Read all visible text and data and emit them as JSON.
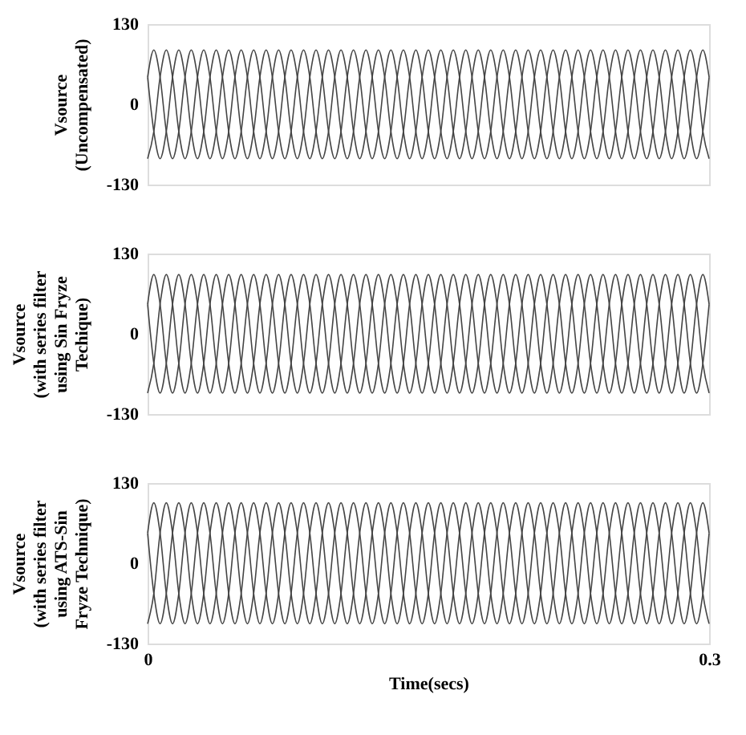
{
  "chart_data": [
    {
      "type": "line",
      "ylabel": "Vsource\n(Uncompensated)",
      "xlim": [
        0,
        0.3
      ],
      "ylim": [
        -130,
        130
      ],
      "yticks": [
        -130,
        0,
        130
      ],
      "tick_labels": "y",
      "grid": false,
      "legend": false,
      "marker": "none",
      "line_style": "solid",
      "x": [
        0,
        0.00333,
        0.00667,
        0.01,
        0.01333,
        0.01667,
        0.02,
        0.02333,
        0.02667,
        0.03,
        0.03333,
        0.03667,
        0.04,
        0.04333,
        0.04667,
        0.05,
        0.05333,
        0.05667,
        0.06,
        0.06333,
        0.06667,
        0.07,
        0.07333,
        0.07667,
        0.08,
        0.08333,
        0.08667,
        0.09,
        0.09333,
        0.09667,
        0.1,
        0.10333,
        0.10667,
        0.11,
        0.11333,
        0.11667,
        0.12,
        0.12333,
        0.12667,
        0.13,
        0.13333,
        0.13667,
        0.14,
        0.14333,
        0.14667,
        0.15,
        0.15333,
        0.15667,
        0.16,
        0.16333,
        0.16667,
        0.17,
        0.17333,
        0.17667,
        0.18,
        0.18333,
        0.18667,
        0.19,
        0.19333,
        0.19667,
        0.2,
        0.20333,
        0.20667,
        0.21,
        0.21333,
        0.21667,
        0.22,
        0.22333,
        0.22667,
        0.23,
        0.23333,
        0.23667,
        0.24,
        0.24333,
        0.24667,
        0.25,
        0.25333,
        0.25667,
        0.26,
        0.26333,
        0.26667,
        0.27,
        0.27333,
        0.27667,
        0.28,
        0.28333,
        0.28667,
        0.29,
        0.29333,
        0.29667,
        0.3
      ],
      "series": [
        {
          "color": "#444444",
          "values": [
            44,
            88,
            44,
            -44,
            -88,
            -44,
            44,
            88,
            44,
            -44,
            -88,
            -44,
            44,
            88,
            44,
            -44,
            -88,
            -44,
            44,
            88,
            44,
            -44,
            -88,
            -44,
            44,
            88,
            44,
            -44,
            -88,
            -44,
            44,
            88,
            44,
            -44,
            -88,
            -44,
            44,
            88,
            44,
            -44,
            -88,
            -44,
            44,
            88,
            44,
            -44,
            -88,
            -44,
            44,
            88,
            44,
            -44,
            -88,
            -44,
            44,
            88,
            44,
            -44,
            -88,
            -44,
            44,
            88,
            44,
            -44,
            -88,
            -44,
            44,
            88,
            44,
            -44,
            -88,
            -44,
            44,
            88,
            44,
            -44,
            -88,
            -44,
            44,
            88,
            44,
            -44,
            -88,
            -44,
            44,
            88,
            44,
            -44,
            -88,
            -44,
            44
          ]
        },
        {
          "color": "#444444",
          "values": [
            -88,
            -44,
            44,
            88,
            44,
            -44,
            -88,
            -44,
            44,
            88,
            44,
            -44,
            -88,
            -44,
            44,
            88,
            44,
            -44,
            -88,
            -44,
            44,
            88,
            44,
            -44,
            -88,
            -44,
            44,
            88,
            44,
            -44,
            -88,
            -44,
            44,
            88,
            44,
            -44,
            -88,
            -44,
            44,
            88,
            44,
            -44,
            -88,
            -44,
            44,
            88,
            44,
            -44,
            -88,
            -44,
            44,
            88,
            44,
            -44,
            -88,
            -44,
            44,
            88,
            44,
            -44,
            -88,
            -44,
            44,
            88,
            44,
            -44,
            -88,
            -44,
            44,
            88,
            44,
            -44,
            -88,
            -44,
            44,
            88,
            44,
            -44,
            -88,
            -44,
            44,
            88,
            44,
            -44,
            -88,
            -44,
            44,
            88,
            44,
            -44,
            -88
          ]
        },
        {
          "color": "#444444",
          "values": [
            44,
            -44,
            -88,
            -44,
            44,
            88,
            44,
            -44,
            -88,
            -44,
            44,
            88,
            44,
            -44,
            -88,
            -44,
            44,
            88,
            44,
            -44,
            -88,
            -44,
            44,
            88,
            44,
            -44,
            -88,
            -44,
            44,
            88,
            44,
            -44,
            -88,
            -44,
            44,
            88,
            44,
            -44,
            -88,
            -44,
            44,
            88,
            44,
            -44,
            -88,
            -44,
            44,
            88,
            44,
            -44,
            -88,
            -44,
            44,
            88,
            44,
            -44,
            -88,
            -44,
            44,
            88,
            44,
            -44,
            -88,
            -44,
            44,
            88,
            44,
            -44,
            -88,
            -44,
            44,
            88,
            44,
            -44,
            -88,
            -44,
            44,
            88,
            44,
            -44,
            -88,
            -44,
            44,
            88,
            44,
            -44,
            -88,
            -44,
            44,
            88,
            44
          ]
        }
      ]
    },
    {
      "type": "line",
      "ylabel": "Vsource\n(with series filter\nusing Sin Fryze\nTechique)",
      "xlim": [
        0,
        0.3
      ],
      "ylim": [
        -130,
        130
      ],
      "yticks": [
        -130,
        0,
        130
      ],
      "tick_labels": "y",
      "grid": false,
      "legend": false,
      "marker": "none",
      "line_style": "solid",
      "x": [
        0,
        0.00333,
        0.00667,
        0.01,
        0.01333,
        0.01667,
        0.02,
        0.02333,
        0.02667,
        0.03,
        0.03333,
        0.03667,
        0.04,
        0.04333,
        0.04667,
        0.05,
        0.05333,
        0.05667,
        0.06,
        0.06333,
        0.06667,
        0.07,
        0.07333,
        0.07667,
        0.08,
        0.08333,
        0.08667,
        0.09,
        0.09333,
        0.09667,
        0.1,
        0.10333,
        0.10667,
        0.11,
        0.11333,
        0.11667,
        0.12,
        0.12333,
        0.12667,
        0.13,
        0.13333,
        0.13667,
        0.14,
        0.14333,
        0.14667,
        0.15,
        0.15333,
        0.15667,
        0.16,
        0.16333,
        0.16667,
        0.17,
        0.17333,
        0.17667,
        0.18,
        0.18333,
        0.18667,
        0.19,
        0.19333,
        0.19667,
        0.2,
        0.20333,
        0.20667,
        0.21,
        0.21333,
        0.21667,
        0.22,
        0.22333,
        0.22667,
        0.23,
        0.23333,
        0.23667,
        0.24,
        0.24333,
        0.24667,
        0.25,
        0.25333,
        0.25667,
        0.26,
        0.26333,
        0.26667,
        0.27,
        0.27333,
        0.27667,
        0.28,
        0.28333,
        0.28667,
        0.29,
        0.29333,
        0.29667,
        0.3
      ],
      "series": [
        {
          "color": "#444444",
          "values": [
            48,
            96,
            48,
            -48,
            -96,
            -48,
            48,
            96,
            48,
            -48,
            -96,
            -48,
            48,
            96,
            48,
            -48,
            -96,
            -48,
            48,
            96,
            48,
            -48,
            -96,
            -48,
            48,
            96,
            48,
            -48,
            -96,
            -48,
            48,
            96,
            48,
            -48,
            -96,
            -48,
            48,
            96,
            48,
            -48,
            -96,
            -48,
            48,
            96,
            48,
            -48,
            -96,
            -48,
            48,
            96,
            48,
            -48,
            -96,
            -48,
            48,
            96,
            48,
            -48,
            -96,
            -48,
            48,
            96,
            48,
            -48,
            -96,
            -48,
            48,
            96,
            48,
            -48,
            -96,
            -48,
            48,
            96,
            48,
            -48,
            -96,
            -48,
            48,
            96,
            48,
            -48,
            -96,
            -48,
            48,
            96,
            48,
            -48,
            -96,
            -48,
            48
          ]
        },
        {
          "color": "#444444",
          "values": [
            -96,
            -48,
            48,
            96,
            48,
            -48,
            -96,
            -48,
            48,
            96,
            48,
            -48,
            -96,
            -48,
            48,
            96,
            48,
            -48,
            -96,
            -48,
            48,
            96,
            48,
            -48,
            -96,
            -48,
            48,
            96,
            48,
            -48,
            -96,
            -48,
            48,
            96,
            48,
            -48,
            -96,
            -48,
            48,
            96,
            48,
            -48,
            -96,
            -48,
            48,
            96,
            48,
            -48,
            -96,
            -48,
            48,
            96,
            48,
            -48,
            -96,
            -48,
            48,
            96,
            48,
            -48,
            -96,
            -48,
            48,
            96,
            48,
            -48,
            -96,
            -48,
            48,
            96,
            48,
            -48,
            -96,
            -48,
            48,
            96,
            48,
            -48,
            -96,
            -48,
            48,
            96,
            48,
            -48,
            -96,
            -48,
            48,
            96,
            48,
            -48,
            -96
          ]
        },
        {
          "color": "#444444",
          "values": [
            48,
            -48,
            -96,
            -48,
            48,
            96,
            48,
            -48,
            -96,
            -48,
            48,
            96,
            48,
            -48,
            -96,
            -48,
            48,
            96,
            48,
            -48,
            -96,
            -48,
            48,
            96,
            48,
            -48,
            -96,
            -48,
            48,
            96,
            48,
            -48,
            -96,
            -48,
            48,
            96,
            48,
            -48,
            -96,
            -48,
            48,
            96,
            48,
            -48,
            -96,
            -48,
            48,
            96,
            48,
            -48,
            -96,
            -48,
            48,
            96,
            48,
            -48,
            -96,
            -48,
            48,
            96,
            48,
            -48,
            -96,
            -48,
            48,
            96,
            48,
            -48,
            -96,
            -48,
            48,
            96,
            48,
            -48,
            -96,
            -48,
            48,
            96,
            48,
            -48,
            -96,
            -48,
            48,
            96,
            48,
            -48,
            -96,
            -48,
            48,
            96,
            48
          ]
        }
      ]
    },
    {
      "type": "line",
      "ylabel": "Vsource\n(with series filter\nusing ATS-Sin\nFryze Technique)",
      "xlabel": "Time(secs)",
      "xlim": [
        0,
        0.3
      ],
      "xticks": [
        0,
        0.3
      ],
      "ylim": [
        -130,
        130
      ],
      "yticks": [
        -130,
        0,
        130
      ],
      "grid": false,
      "legend": false,
      "marker": "none",
      "line_style": "solid",
      "x": [
        0,
        0.00333,
        0.00667,
        0.01,
        0.01333,
        0.01667,
        0.02,
        0.02333,
        0.02667,
        0.03,
        0.03333,
        0.03667,
        0.04,
        0.04333,
        0.04667,
        0.05,
        0.05333,
        0.05667,
        0.06,
        0.06333,
        0.06667,
        0.07,
        0.07333,
        0.07667,
        0.08,
        0.08333,
        0.08667,
        0.09,
        0.09333,
        0.09667,
        0.1,
        0.10333,
        0.10667,
        0.11,
        0.11333,
        0.11667,
        0.12,
        0.12333,
        0.12667,
        0.13,
        0.13333,
        0.13667,
        0.14,
        0.14333,
        0.14667,
        0.15,
        0.15333,
        0.15667,
        0.16,
        0.16333,
        0.16667,
        0.17,
        0.17333,
        0.17667,
        0.18,
        0.18333,
        0.18667,
        0.19,
        0.19333,
        0.19667,
        0.2,
        0.20333,
        0.20667,
        0.21,
        0.21333,
        0.21667,
        0.22,
        0.22333,
        0.22667,
        0.23,
        0.23333,
        0.23667,
        0.24,
        0.24333,
        0.24667,
        0.25,
        0.25333,
        0.25667,
        0.26,
        0.26333,
        0.26667,
        0.27,
        0.27333,
        0.27667,
        0.28,
        0.28333,
        0.28667,
        0.29,
        0.29333,
        0.29667,
        0.3
      ],
      "series": [
        {
          "color": "#444444",
          "values": [
            49,
            98,
            49,
            -49,
            -98,
            -49,
            49,
            98,
            49,
            -49,
            -98,
            -49,
            49,
            98,
            49,
            -49,
            -98,
            -49,
            49,
            98,
            49,
            -49,
            -98,
            -49,
            49,
            98,
            49,
            -49,
            -98,
            -49,
            49,
            98,
            49,
            -49,
            -98,
            -49,
            49,
            98,
            49,
            -49,
            -98,
            -49,
            49,
            98,
            49,
            -49,
            -98,
            -49,
            49,
            98,
            49,
            -49,
            -98,
            -49,
            49,
            98,
            49,
            -49,
            -98,
            -49,
            49,
            98,
            49,
            -49,
            -98,
            -49,
            49,
            98,
            49,
            -49,
            -98,
            -49,
            49,
            98,
            49,
            -49,
            -98,
            -49,
            49,
            98,
            49,
            -49,
            -98,
            -49,
            49,
            98,
            49,
            -49,
            -98,
            -49,
            49
          ]
        },
        {
          "color": "#444444",
          "values": [
            -98,
            -49,
            49,
            98,
            49,
            -49,
            -98,
            -49,
            49,
            98,
            49,
            -49,
            -98,
            -49,
            49,
            98,
            49,
            -49,
            -98,
            -49,
            49,
            98,
            49,
            -49,
            -98,
            -49,
            49,
            98,
            49,
            -49,
            -98,
            -49,
            49,
            98,
            49,
            -49,
            -98,
            -49,
            49,
            98,
            49,
            -49,
            -98,
            -49,
            49,
            98,
            49,
            -49,
            -98,
            -49,
            49,
            98,
            49,
            -49,
            -98,
            -49,
            49,
            98,
            49,
            -49,
            -98,
            -49,
            49,
            98,
            49,
            -49,
            -98,
            -49,
            49,
            98,
            49,
            -49,
            -98,
            -49,
            49,
            98,
            49,
            -49,
            -98,
            -49,
            49,
            98,
            49,
            -49,
            -98,
            -49,
            49,
            98,
            49,
            -49,
            -98
          ]
        },
        {
          "color": "#444444",
          "values": [
            49,
            -49,
            -98,
            -49,
            49,
            98,
            49,
            -49,
            -98,
            -49,
            49,
            98,
            49,
            -49,
            -98,
            -49,
            49,
            98,
            49,
            -49,
            -98,
            -49,
            49,
            98,
            49,
            -49,
            -98,
            -49,
            49,
            98,
            49,
            -49,
            -98,
            -49,
            49,
            98,
            49,
            -49,
            -98,
            -49,
            49,
            98,
            49,
            -49,
            -98,
            -49,
            49,
            98,
            49,
            -49,
            -98,
            -49,
            49,
            98,
            49,
            -49,
            -98,
            -49,
            49,
            98,
            49,
            -49,
            -98,
            -49,
            49,
            98,
            49,
            -49,
            -98,
            -49,
            49,
            98,
            49,
            -49,
            -98,
            -49,
            49,
            98,
            49,
            -49,
            -98,
            -49,
            49,
            98,
            49,
            -49,
            -98,
            -49,
            49,
            98,
            49
          ]
        }
      ]
    }
  ]
}
